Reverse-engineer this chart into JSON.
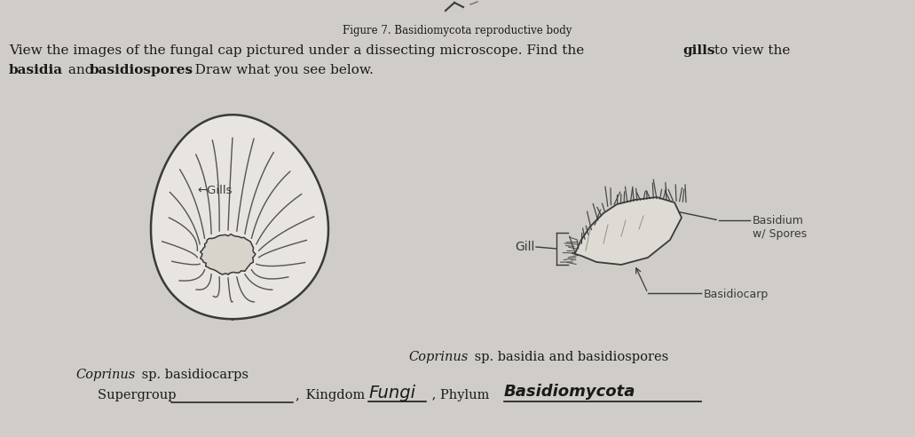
{
  "background_color": "#cccac5",
  "paper_color": "#e8e5df",
  "title": "Figure 7. Basidiomycota reproductive body",
  "ink_color": "#1a1a1a",
  "pencil_color": "#3a3a3a",
  "light_pencil": "#707070",
  "very_light": "#aaaaaa",
  "line1_normal": "View the images of the fungal cap pictured under a dissecting microscope. Find the ",
  "line1_bold": "gills",
  "line1_end": " to view the",
  "line2_bold1": "basidia",
  "line2_mid": " and ",
  "line2_bold2": "basidiospores",
  "line2_end": ". Draw what you see below.",
  "left_label1_italic": "Coprinus",
  "left_label1_rest": " sp. basidiocarps",
  "left_label2": "Supergroup ",
  "right_title_italic": "Coprinus",
  "right_title_rest": " sp. basidia and basidiospores",
  "kingdom_label": ", Kingdom ",
  "kingdom_written": "Fungi",
  "phylum_label": ", Phylum ",
  "phylum_written": "Basidiomycota",
  "gills_label": "←Gills",
  "gill_label_right": "Gill",
  "basidium_label": "Basidium\nw/ Spores",
  "basidiocarp_label": "Basidiocarp"
}
